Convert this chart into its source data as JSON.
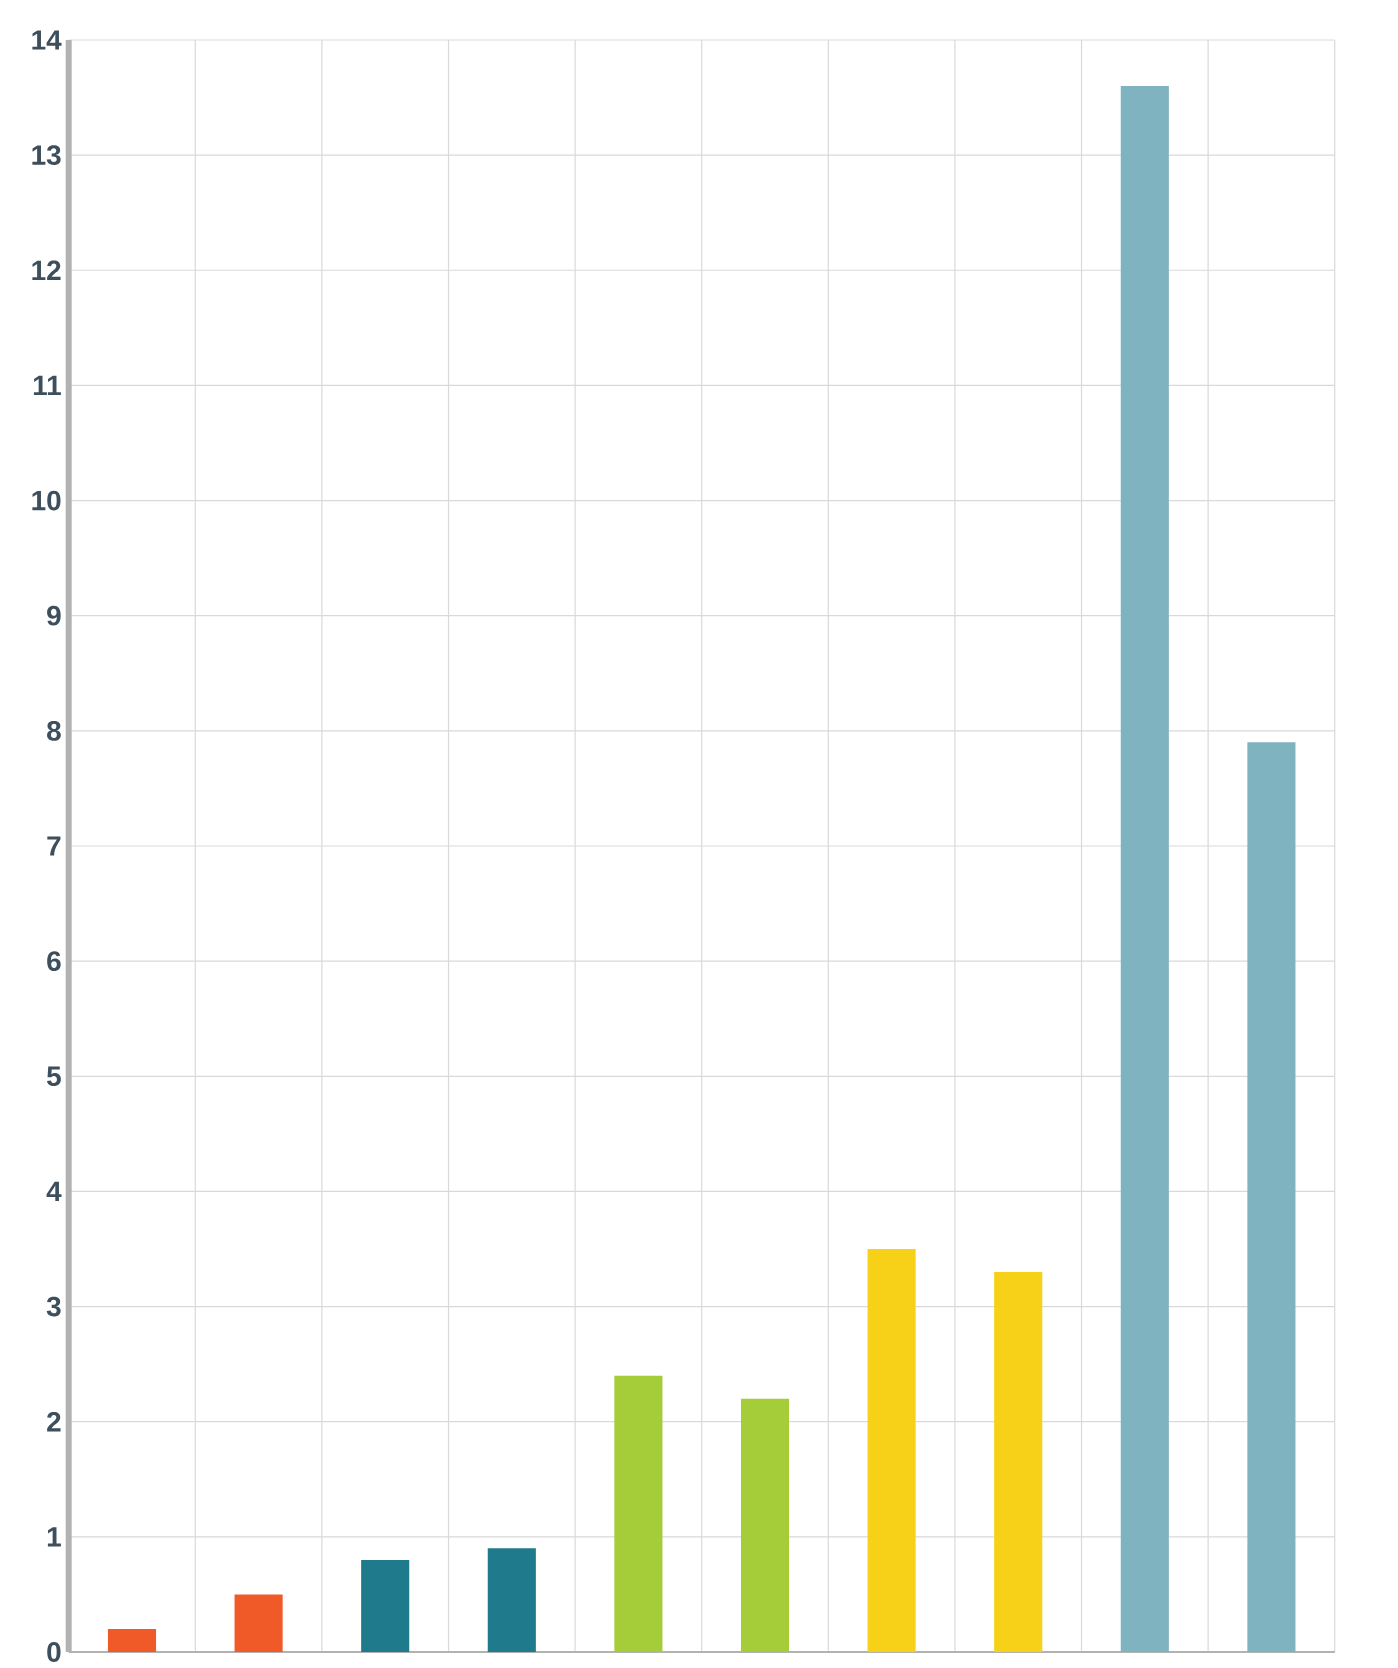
{
  "chart_data": {
    "type": "bar",
    "categories": [
      null,
      null,
      null,
      null,
      null,
      null,
      null,
      null,
      null,
      null
    ],
    "values": [
      0.2,
      0.5,
      0.8,
      0.9,
      2.4,
      2.2,
      3.5,
      3.3,
      13.6,
      7.9
    ],
    "colors": [
      "#f05a28",
      "#f05a28",
      "#1f7a8c",
      "#1f7a8c",
      "#a5cd39",
      "#a5cd39",
      "#f7d117",
      "#f7d117",
      "#7fb3c0",
      "#7fb3c0"
    ],
    "ylim": [
      0,
      14
    ],
    "yticks": [
      0,
      1,
      2,
      3,
      4,
      5,
      6,
      7,
      8,
      9,
      10,
      11,
      12,
      13,
      14
    ],
    "grid": true,
    "tick_labels": "y"
  }
}
